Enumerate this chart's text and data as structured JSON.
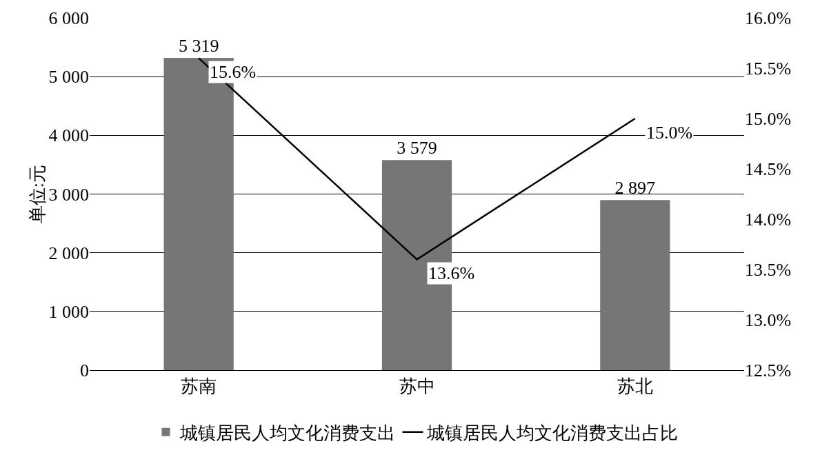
{
  "chart_data": {
    "type": "bar",
    "ylabel": "单位:元",
    "categories": [
      "苏南",
      "苏中",
      "苏北"
    ],
    "series": [
      {
        "name": "城镇居民人均文化消费支出",
        "color": "#767676",
        "values": [
          5319,
          3579,
          2897
        ],
        "value_labels": [
          "5 319",
          "3 579",
          "2 897"
        ]
      },
      {
        "name": "城镇居民人均文化消费支出占比",
        "type": "line",
        "axis": "y2",
        "color": "#000000",
        "values": [
          15.6,
          13.6,
          15.0
        ],
        "value_labels": [
          "15.6%",
          "13.6%",
          "15.0%"
        ]
      }
    ],
    "ylim": [
      0,
      6000
    ],
    "yticks": [
      0,
      {
        "value": 1000,
        "label": "1 000"
      },
      {
        "value": 2000,
        "label": "2 000"
      },
      {
        "value": 3000,
        "label": "3 000"
      },
      {
        "value": 4000,
        "label": "4 000"
      },
      {
        "value": 5000,
        "label": "5 000"
      },
      {
        "value": 6000,
        "label": "6 000"
      }
    ],
    "y2lim": [
      12.5,
      16.0
    ],
    "y2ticks": [
      {
        "value": 12.5,
        "label": "12.5%"
      },
      {
        "value": 13.0,
        "label": "13.0%"
      },
      {
        "value": 13.5,
        "label": "13.5%"
      },
      {
        "value": 14.0,
        "label": "14.0%"
      },
      {
        "value": 14.5,
        "label": "14.5%"
      },
      {
        "value": 15.0,
        "label": "15.0%"
      },
      {
        "value": 15.5,
        "label": "15.5%"
      },
      {
        "value": 16.0,
        "label": "16.0%"
      }
    ],
    "grid": "y",
    "legend": "bottom",
    "marker": "none",
    "line_style": "solid"
  }
}
